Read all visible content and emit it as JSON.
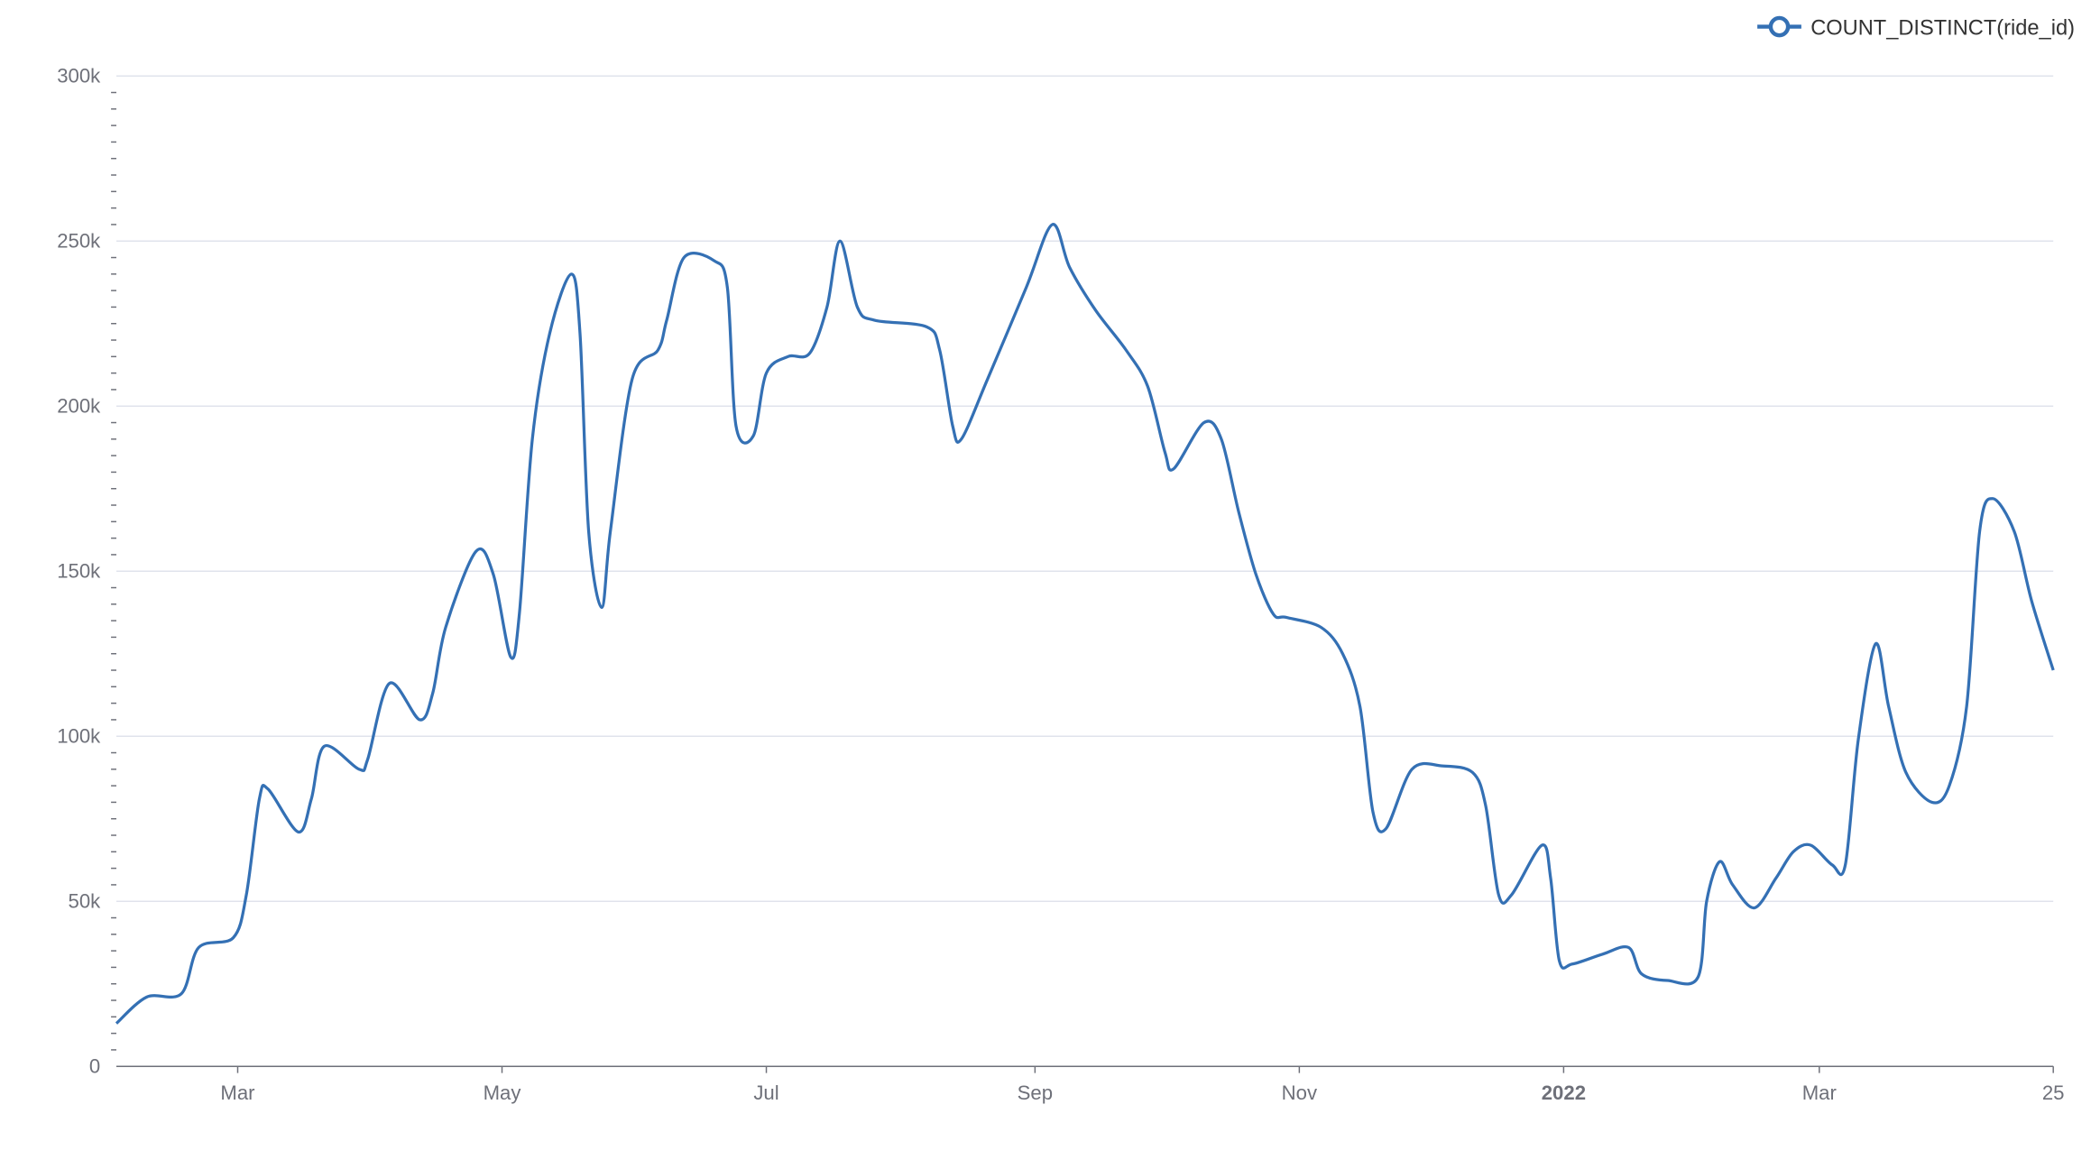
{
  "chart_data": {
    "type": "line",
    "title": "",
    "xlabel": "",
    "ylabel": "",
    "x_unit": "days since 2021-02-01",
    "x_range": [
      0,
      447
    ],
    "ylim": [
      0,
      300000
    ],
    "grid": true,
    "smooth": true,
    "legend": {
      "position": "top-right",
      "entries": [
        "COUNT_DISTINCT(ride_id)"
      ]
    },
    "color": "#3470b4",
    "y_ticks": [
      {
        "value": 0,
        "label": "0"
      },
      {
        "value": 50000,
        "label": "50k"
      },
      {
        "value": 100000,
        "label": "100k"
      },
      {
        "value": 150000,
        "label": "150k"
      },
      {
        "value": 200000,
        "label": "200k"
      },
      {
        "value": 250000,
        "label": "250k"
      },
      {
        "value": 300000,
        "label": "300k"
      }
    ],
    "x_ticks": [
      {
        "day": 28,
        "label": "Mar",
        "bold": false
      },
      {
        "day": 89,
        "label": "May",
        "bold": false
      },
      {
        "day": 150,
        "label": "Jul",
        "bold": false
      },
      {
        "day": 212,
        "label": "Sep",
        "bold": false
      },
      {
        "day": 273,
        "label": "Nov",
        "bold": false
      },
      {
        "day": 334,
        "label": "2022",
        "bold": true
      },
      {
        "day": 393,
        "label": "Mar",
        "bold": false
      },
      {
        "day": 447,
        "label": "25",
        "bold": false
      }
    ],
    "series": [
      {
        "name": "COUNT_DISTINCT(ride_id)",
        "x": [
          0,
          7,
          15,
          19,
          27,
          30,
          33,
          35,
          42,
          45,
          48,
          56,
          58,
          63,
          70,
          73,
          76,
          83,
          87,
          91,
          93,
          96,
          100,
          105,
          107,
          109,
          112,
          114,
          119,
          125,
          127,
          131,
          138,
          141,
          143,
          147,
          150,
          155,
          160,
          164,
          167,
          171,
          175,
          187,
          190,
          193,
          195,
          201,
          210,
          216,
          220,
          226,
          233,
          238,
          242,
          244,
          251,
          255,
          259,
          263,
          267,
          270,
          278,
          283,
          287,
          290,
          293,
          299,
          306,
          313,
          316,
          319,
          322,
          329,
          331,
          333,
          336,
          343,
          349,
          352,
          358,
          365,
          367,
          370,
          373,
          378,
          383,
          387,
          391,
          396,
          399,
          402,
          406,
          409,
          413,
          419,
          423,
          427,
          430,
          433,
          438,
          442,
          447
        ],
        "values": [
          13000,
          21000,
          22000,
          36000,
          39000,
          52000,
          81000,
          84000,
          71000,
          81000,
          97000,
          90000,
          93000,
          116000,
          105000,
          113000,
          133000,
          156000,
          149000,
          124000,
          137000,
          190000,
          222000,
          240000,
          222000,
          162000,
          139000,
          162000,
          208000,
          217000,
          226000,
          245000,
          244000,
          236000,
          194000,
          191000,
          210000,
          215000,
          216000,
          230000,
          250000,
          230000,
          226000,
          224000,
          217000,
          194000,
          190000,
          208000,
          236000,
          255000,
          242000,
          229000,
          217000,
          206000,
          186000,
          181000,
          195000,
          190000,
          168000,
          149000,
          137000,
          136000,
          133000,
          125000,
          109000,
          77000,
          72000,
          90000,
          91000,
          89000,
          79000,
          52000,
          52000,
          67000,
          57000,
          32000,
          31000,
          34000,
          36000,
          28000,
          26000,
          27000,
          50000,
          62000,
          55000,
          48000,
          57000,
          65000,
          67000,
          61000,
          61000,
          99000,
          128000,
          109000,
          89000,
          80000,
          85000,
          109000,
          162000,
          172000,
          162000,
          141000,
          120000
        ]
      }
    ]
  }
}
